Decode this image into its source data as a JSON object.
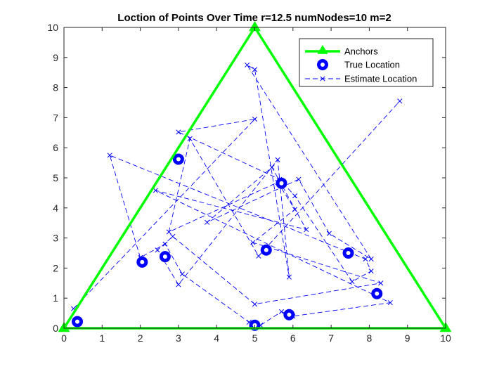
{
  "chart_data": {
    "type": "line",
    "title": "Loction of Points Over Time r=12.5 numNodes=10 m=2",
    "xlabel": "",
    "ylabel": "",
    "xlim": [
      0,
      10
    ],
    "ylim": [
      0,
      10
    ],
    "x_ticks": [
      "0",
      "1",
      "2",
      "3",
      "4",
      "5",
      "6",
      "7",
      "8",
      "9",
      "10"
    ],
    "y_ticks": [
      "0",
      "1",
      "2",
      "3",
      "4",
      "5",
      "6",
      "7",
      "8",
      "9",
      "10"
    ],
    "grid": false,
    "legend_position": "top-right",
    "series": [
      {
        "name": "Anchors",
        "style": "solid-line-triangle",
        "color": "#00ff00",
        "x": [
          0,
          5,
          10,
          0
        ],
        "y": [
          0,
          10,
          0,
          0
        ]
      },
      {
        "name": "True Location",
        "style": "circle-marker",
        "color": "#0000ff",
        "x": [
          0.35,
          5.0,
          5.9,
          8.2,
          7.45,
          5.3,
          5.7,
          3.0,
          2.65,
          2.05
        ],
        "y": [
          0.22,
          0.1,
          0.45,
          1.15,
          2.5,
          2.6,
          4.82,
          5.62,
          2.38,
          2.2
        ]
      },
      {
        "name": "Estimate Location",
        "style": "dashed-line-x",
        "color": "#0000ff",
        "x": [
          0.25,
          5.0,
          3.0,
          5.65,
          6.05,
          7.55,
          8.05,
          7.9,
          1.2,
          2.0,
          2.65,
          3.1,
          4.85,
          5.15,
          5.7,
          6.0,
          8.55,
          2.4,
          6.35,
          5.45,
          3.75,
          6.15,
          6.95,
          8.05,
          4.8,
          5.0,
          5.9,
          5.6,
          3.0,
          2.45,
          2.85,
          5.0,
          8.3,
          4.95,
          6.05,
          5.6,
          2.75,
          3.3,
          5.1,
          8.8
        ],
        "y": [
          0.65,
          6.95,
          6.52,
          4.95,
          4.4,
          1.55,
          1.9,
          2.3,
          5.75,
          2.35,
          2.8,
          1.8,
          0.2,
          0.1,
          0.55,
          0.4,
          0.85,
          4.58,
          3.28,
          5.35,
          3.52,
          4.95,
          3.15,
          2.3,
          8.75,
          8.6,
          1.7,
          5.6,
          1.45,
          2.6,
          3.05,
          0.8,
          1.5,
          2.85,
          3.95,
          4.85,
          3.2,
          6.3,
          2.4,
          7.55
        ]
      }
    ]
  }
}
